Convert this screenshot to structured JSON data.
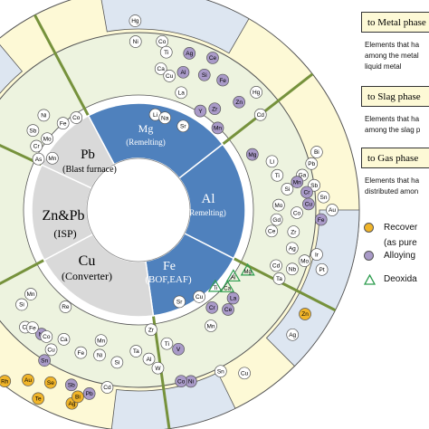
{
  "colors": {
    "cream": "#fdf9d6",
    "light_blue": "#dde6f1",
    "light_green": "#edf3df",
    "inner_gray": "#d9d9d9",
    "inner_blue": "#4f81bd",
    "divider": "#76923c",
    "recover": "#f0b429",
    "alloy": "#a99ac8",
    "deox": "#2e9d4f",
    "plain": "#ffffff"
  },
  "sectors": {
    "mg": {
      "name": "Mg",
      "process": "(Remelting)"
    },
    "al": {
      "name": "Al",
      "process": "(Remelting)"
    },
    "fe": {
      "name": "Fe",
      "process": "(BOF,EAF)"
    },
    "cu": {
      "name": "Cu",
      "process": "(Converter)"
    },
    "znpb": {
      "name": "Zn&Pb",
      "process": "(ISP)"
    },
    "pb": {
      "name": "Pb",
      "process": "(Blast furnace)"
    }
  },
  "legend": {
    "metal": {
      "title": "to Metal phase",
      "desc": [
        "Elements that ha",
        "among the metal",
        "liquid metal"
      ]
    },
    "slag": {
      "title": "to Slag phase",
      "desc": [
        "Elements that ha",
        "among the slag p"
      ]
    },
    "gas": {
      "title": "to Gas phase",
      "desc": [
        "Elements that ha",
        "distributed amon"
      ]
    },
    "recover": {
      "label": "Recover",
      "sub": "(as pure"
    },
    "alloy": {
      "label": "Alloying"
    },
    "deox": {
      "label": "Deoxida"
    }
  },
  "elements": [
    {
      "s": "Pt",
      "r": 223,
      "a": -51,
      "t": "r"
    },
    {
      "s": "Au",
      "r": 220,
      "a": -62,
      "t": "r"
    },
    {
      "s": "Pd",
      "r": 203,
      "a": -57,
      "t": "r"
    },
    {
      "s": "Bi",
      "r": 190,
      "a": -68,
      "t": "r"
    },
    {
      "s": "Cu",
      "r": 187,
      "a": -62,
      "t": "r"
    },
    {
      "s": "Ag",
      "r": 197,
      "a": -65,
      "t": "a"
    },
    {
      "s": "Zn",
      "r": 182,
      "a": -85,
      "t": "n"
    },
    {
      "s": "Sb",
      "r": 146,
      "a": -53,
      "t": "n"
    },
    {
      "s": "Ni",
      "r": 148,
      "a": -45,
      "t": "n"
    },
    {
      "s": "Cr",
      "r": 133,
      "a": -58,
      "t": "n"
    },
    {
      "s": "Mo",
      "r": 128,
      "a": -52,
      "t": "n"
    },
    {
      "s": "Fe",
      "r": 127,
      "a": -41,
      "t": "n"
    },
    {
      "s": "Co",
      "r": 123,
      "a": -34,
      "t": "n"
    },
    {
      "s": "As",
      "r": 124,
      "a": -63,
      "t": "n"
    },
    {
      "s": "Mn",
      "r": 111,
      "a": -59,
      "t": "n"
    },
    {
      "s": "Hg",
      "r": 209,
      "a": -1,
      "t": "n"
    },
    {
      "s": "Ni",
      "r": 186,
      "a": -1,
      "t": "n"
    },
    {
      "s": "Co",
      "r": 188,
      "a": 8,
      "t": "n"
    },
    {
      "s": "Ti",
      "r": 177,
      "a": 10,
      "t": "n"
    },
    {
      "s": "Ag",
      "r": 182,
      "a": 18,
      "t": "a"
    },
    {
      "s": "Ce",
      "r": 187,
      "a": 26,
      "t": "a"
    },
    {
      "s": "Ca",
      "r": 158,
      "a": 9,
      "t": "n"
    },
    {
      "s": "Al",
      "r": 160,
      "a": 18,
      "t": "a"
    },
    {
      "s": "Si",
      "r": 166,
      "a": 26,
      "t": "a"
    },
    {
      "s": "Fe",
      "r": 171,
      "a": 33,
      "t": "a"
    },
    {
      "s": "La",
      "r": 138,
      "a": 20,
      "t": "n"
    },
    {
      "s": "Y",
      "r": 129,
      "a": 32,
      "t": "a"
    },
    {
      "s": "Zr",
      "r": 140,
      "a": 37,
      "t": "a"
    },
    {
      "s": "Mn",
      "r": 126,
      "a": 44,
      "t": "a"
    },
    {
      "s": "Cu",
      "r": 152,
      "a": 13,
      "t": "n"
    },
    {
      "s": "Hg",
      "r": 184,
      "a": 45,
      "t": "n"
    },
    {
      "s": "Cd",
      "r": 171,
      "a": 52,
      "t": "n"
    },
    {
      "s": "Zn",
      "r": 163,
      "a": 43,
      "t": "a"
    },
    {
      "s": "Li",
      "r": 107,
      "a": 10,
      "t": "n"
    },
    {
      "s": "Na",
      "r": 106,
      "a": 16,
      "t": "n"
    },
    {
      "s": "Sr",
      "r": 105,
      "a": 28,
      "t": "n"
    },
    {
      "s": "Bi",
      "r": 207,
      "a": 72,
      "t": "n"
    },
    {
      "s": "Pb",
      "r": 198,
      "a": 75,
      "t": "n"
    },
    {
      "s": "Sb",
      "r": 196,
      "a": 82,
      "t": "n"
    },
    {
      "s": "Ga",
      "r": 185,
      "a": 78,
      "t": "n"
    },
    {
      "s": "Mn",
      "r": 178,
      "a": 80,
      "t": "a"
    },
    {
      "s": "Cr",
      "r": 187,
      "a": 84,
      "t": "a"
    },
    {
      "s": "Cu",
      "r": 188,
      "a": 88,
      "t": "a"
    },
    {
      "s": "Co",
      "r": 175,
      "a": 91,
      "t": "n"
    },
    {
      "s": "Sn",
      "r": 205,
      "a": 86,
      "t": "n"
    },
    {
      "s": "Au",
      "r": 214,
      "a": 90,
      "t": "n"
    },
    {
      "s": "Fe",
      "r": 202,
      "a": 93,
      "t": "a"
    },
    {
      "s": "Li",
      "r": 157,
      "a": 70,
      "t": "n"
    },
    {
      "s": "Ti",
      "r": 158,
      "a": 76,
      "t": "n"
    },
    {
      "s": "Si",
      "r": 166,
      "a": 82,
      "t": "n"
    },
    {
      "s": "Mo",
      "r": 155,
      "a": 88,
      "t": "n"
    },
    {
      "s": "Gd",
      "r": 153,
      "a": 94,
      "t": "n"
    },
    {
      "s": "Ce",
      "r": 149,
      "a": 99,
      "t": "n"
    },
    {
      "s": "Mg",
      "r": 140,
      "a": 64,
      "t": "a"
    },
    {
      "s": "Ag",
      "r": 175,
      "a": 104,
      "t": "n"
    },
    {
      "s": "Nb",
      "r": 182,
      "a": 111,
      "t": "n"
    },
    {
      "s": "Mo",
      "r": 192,
      "a": 107,
      "t": "n"
    },
    {
      "s": "Ir",
      "r": 203,
      "a": 104,
      "t": "n"
    },
    {
      "s": "Pt",
      "r": 213,
      "a": 108,
      "t": "n"
    },
    {
      "s": "Zr",
      "r": 173,
      "a": 98,
      "t": "n"
    },
    {
      "s": "Ta",
      "r": 173,
      "a": 116,
      "t": "n"
    },
    {
      "s": "Cd",
      "r": 164,
      "a": 112,
      "t": "n"
    },
    {
      "s": "Zn",
      "r": 217,
      "a": 122,
      "t": "r"
    },
    {
      "s": "Ag",
      "r": 219,
      "a": 129,
      "t": "n"
    },
    {
      "s": "Mg",
      "r": 138,
      "a": 119,
      "t": "d"
    },
    {
      "s": "Al",
      "r": 128,
      "a": 125,
      "t": "d"
    },
    {
      "s": "Ca",
      "r": 130,
      "a": 131,
      "t": "d"
    },
    {
      "s": "Ti",
      "r": 120,
      "a": 135,
      "t": "d"
    },
    {
      "s": "La",
      "r": 143,
      "a": 133,
      "t": "a"
    },
    {
      "s": "Ce",
      "r": 148,
      "a": 138,
      "t": "a"
    },
    {
      "s": "Cr",
      "r": 135,
      "a": 143,
      "t": "a"
    },
    {
      "s": "Mn",
      "r": 151,
      "a": 148,
      "t": "n"
    },
    {
      "s": "Cu",
      "r": 117,
      "a": 145,
      "t": "n"
    },
    {
      "s": "Sr",
      "r": 111,
      "a": 156,
      "t": "n"
    },
    {
      "s": "V",
      "r": 160,
      "a": 164,
      "t": "a"
    },
    {
      "s": "Ti",
      "r": 151,
      "a": 168,
      "t": "n"
    },
    {
      "s": "Zr",
      "r": 133,
      "a": 174,
      "t": "n"
    },
    {
      "s": "Cu",
      "r": 215,
      "a": 147,
      "t": "n"
    },
    {
      "s": "Sn",
      "r": 200,
      "a": 153,
      "t": "n"
    },
    {
      "s": "Ni",
      "r": 198,
      "a": 163,
      "t": "a"
    },
    {
      "s": "Co",
      "r": 195,
      "a": 166,
      "t": "a"
    },
    {
      "s": "W",
      "r": 176,
      "a": 173,
      "t": "n"
    },
    {
      "s": "Ta",
      "r": 156,
      "a": 181,
      "t": "n"
    },
    {
      "s": "Al",
      "r": 165,
      "a": 176,
      "t": "n"
    },
    {
      "s": "Si",
      "r": 170,
      "a": 188,
      "t": "n"
    },
    {
      "s": "Mn",
      "r": 150,
      "a": 196,
      "t": "n"
    },
    {
      "s": "Ni",
      "r": 166,
      "a": 195,
      "t": "n"
    },
    {
      "s": "Fe",
      "r": 170,
      "a": 202,
      "t": "n"
    },
    {
      "s": "Ca",
      "r": 165,
      "a": 210,
      "t": "n"
    },
    {
      "s": "Re",
      "r": 134,
      "a": 217,
      "t": "n"
    },
    {
      "s": "Pb",
      "r": 210,
      "a": 195,
      "t": "a"
    },
    {
      "s": "Sb",
      "r": 207,
      "a": 201,
      "t": "a"
    },
    {
      "s": "Cd",
      "r": 199,
      "a": 190,
      "t": "n"
    },
    {
      "s": "Ag",
      "r": 226,
      "a": 199,
      "t": "r"
    },
    {
      "s": "Bi",
      "r": 217,
      "a": 198,
      "t": "r"
    },
    {
      "s": "Te",
      "r": 236,
      "a": 208,
      "t": "r"
    },
    {
      "s": "Se",
      "r": 214,
      "a": 207,
      "t": "r"
    },
    {
      "s": "Au",
      "r": 224,
      "a": 213,
      "t": "r"
    },
    {
      "s": "Rh",
      "r": 240,
      "a": 218,
      "t": "r"
    },
    {
      "s": "Sn",
      "r": 196,
      "a": 212,
      "t": "a"
    },
    {
      "s": "Ni",
      "r": 174,
      "a": 218,
      "t": "a"
    },
    {
      "s": "Si",
      "r": 166,
      "a": 231,
      "t": "n"
    },
    {
      "s": "Cr",
      "r": 180,
      "a": 224,
      "t": "n"
    },
    {
      "s": "Mn",
      "r": 151,
      "a": 232,
      "t": "n"
    },
    {
      "s": "Fe",
      "r": 175,
      "a": 222,
      "t": "n"
    },
    {
      "s": "Co",
      "r": 173,
      "a": 216,
      "t": "n"
    },
    {
      "s": "Cu",
      "r": 182,
      "a": 212,
      "t": "n"
    },
    {
      "s": "Zn",
      "r": 193,
      "a": 266,
      "t": "n"
    }
  ]
}
